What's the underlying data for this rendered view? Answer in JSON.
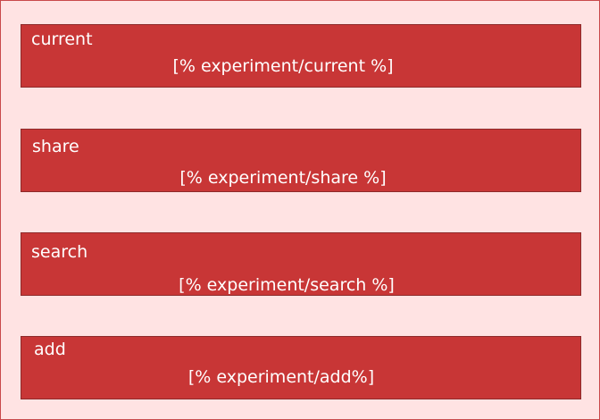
{
  "blocks": [
    {
      "title": "current",
      "template": "[% experiment/current %]"
    },
    {
      "title": "share",
      "template": "[% experiment/share %]"
    },
    {
      "title": "search",
      "template": "[% experiment/search %]"
    },
    {
      "title": "add",
      "template": "[% experiment/add%]"
    }
  ],
  "colors": {
    "background": "#ffe3e3",
    "block": "#c83636",
    "text": "#ffffff"
  }
}
